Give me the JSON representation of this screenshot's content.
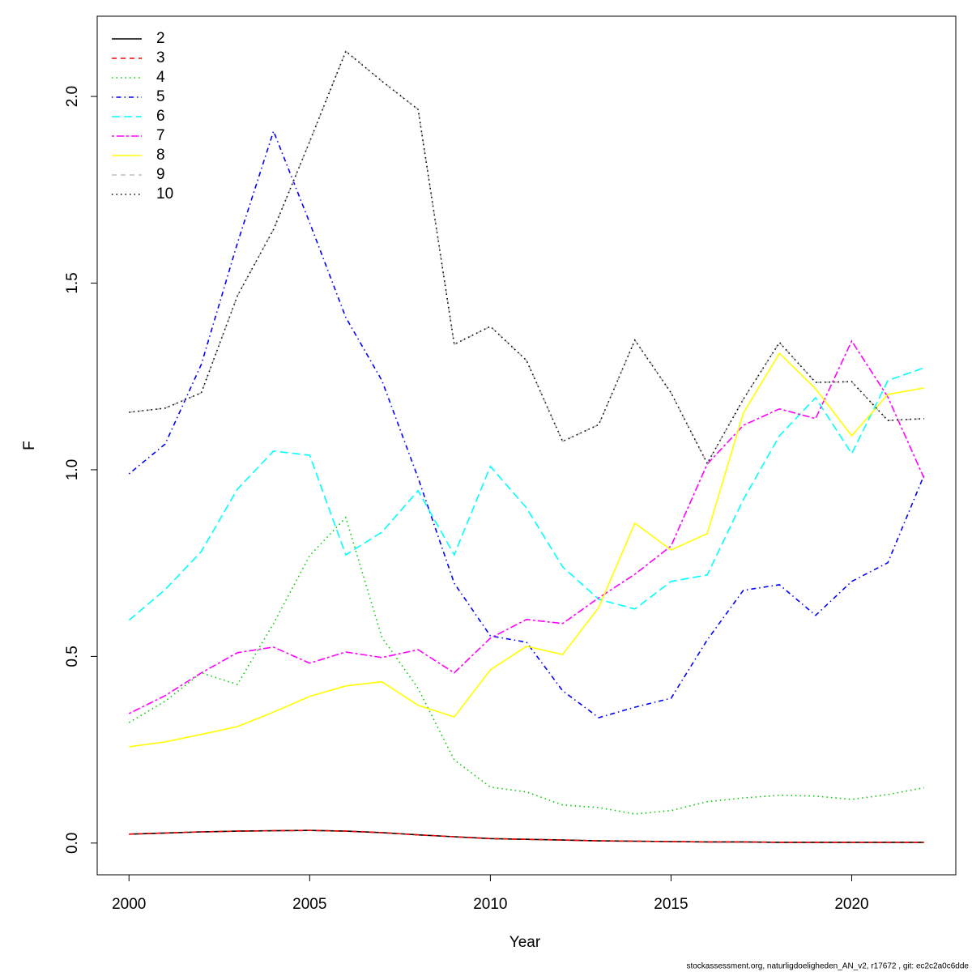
{
  "chart_data": {
    "type": "line",
    "xlabel": "Year",
    "ylabel": "F",
    "footer": "stockassessment.org, naturligdoeligheden_AN_v2, r17672 , git: ec2c2a0c6dde",
    "x": [
      2000,
      2001,
      2002,
      2003,
      2004,
      2005,
      2006,
      2007,
      2008,
      2009,
      2010,
      2011,
      2012,
      2013,
      2014,
      2015,
      2016,
      2017,
      2018,
      2019,
      2020,
      2021,
      2022
    ],
    "xlim": [
      1999.12,
      2022.88
    ],
    "xticks": [
      2000,
      2005,
      2010,
      2015,
      2020
    ],
    "ylim": [
      -0.085,
      2.215
    ],
    "yticks": [
      {
        "value": 0,
        "label": "0.0"
      },
      0.5,
      {
        "value": 1,
        "label": "1.0"
      },
      1.5,
      {
        "value": 2,
        "label": "2.0"
      }
    ],
    "legend": "top-left",
    "series": [
      {
        "name": "2",
        "color": "#000000",
        "dash": "none",
        "values": [
          0.024,
          0.027,
          0.03,
          0.032,
          0.033,
          0.034,
          0.032,
          0.028,
          0.022,
          0.017,
          0.012,
          0.01,
          0.008,
          0.006,
          0.005,
          0.004,
          0.003,
          0.003,
          0.002,
          0.002,
          0.002,
          0.002,
          0.002
        ]
      },
      {
        "name": "3",
        "color": "#ff0000",
        "dash": "6 5",
        "values": [
          0.024,
          0.027,
          0.03,
          0.032,
          0.033,
          0.034,
          0.032,
          0.028,
          0.022,
          0.017,
          0.012,
          0.01,
          0.008,
          0.006,
          0.005,
          0.004,
          0.003,
          0.003,
          0.002,
          0.002,
          0.002,
          0.002,
          0.002
        ]
      },
      {
        "name": "4",
        "color": "#00cd00",
        "dash": "1.5 4",
        "values": [
          0.323,
          0.38,
          0.456,
          0.425,
          0.588,
          0.77,
          0.872,
          0.551,
          0.414,
          0.223,
          0.15,
          0.137,
          0.102,
          0.095,
          0.078,
          0.087,
          0.111,
          0.121,
          0.128,
          0.126,
          0.117,
          0.13,
          0.148
        ]
      },
      {
        "name": "5",
        "color": "#0000ff",
        "dash": "1.5 4 6 4",
        "values": [
          0.989,
          1.069,
          1.282,
          1.607,
          1.907,
          1.662,
          1.408,
          1.239,
          0.978,
          0.696,
          0.555,
          0.538,
          0.408,
          0.336,
          0.364,
          0.388,
          0.544,
          0.677,
          0.692,
          0.61,
          0.701,
          0.751,
          0.985
        ]
      },
      {
        "name": "6",
        "color": "#00ffff",
        "dash": "10 5",
        "values": [
          0.597,
          0.679,
          0.781,
          0.948,
          1.05,
          1.039,
          0.772,
          0.833,
          0.944,
          0.772,
          1.009,
          0.898,
          0.74,
          0.653,
          0.627,
          0.701,
          0.718,
          0.92,
          1.091,
          1.193,
          1.043,
          1.239,
          1.273
        ]
      },
      {
        "name": "7",
        "color": "#ff00ff",
        "dash": "3 3 9 3",
        "values": [
          0.347,
          0.395,
          0.456,
          0.51,
          0.525,
          0.482,
          0.512,
          0.497,
          0.518,
          0.456,
          0.549,
          0.599,
          0.588,
          0.657,
          0.72,
          0.796,
          1.015,
          1.119,
          1.163,
          1.137,
          1.345,
          1.195,
          0.978
        ]
      },
      {
        "name": "8",
        "color": "#ffff00",
        "dash": "none",
        "values": [
          0.258,
          0.271,
          0.291,
          0.312,
          0.351,
          0.393,
          0.421,
          0.432,
          0.369,
          0.338,
          0.464,
          0.527,
          0.505,
          0.631,
          0.857,
          0.785,
          0.829,
          1.152,
          1.312,
          1.217,
          1.091,
          1.202,
          1.219
        ]
      },
      {
        "name": "9",
        "color": "#bebebe",
        "dash": "6 5",
        "values": [
          1.154,
          1.165,
          1.206,
          1.466,
          1.644,
          1.879,
          2.121,
          2.041,
          1.965,
          1.336,
          1.384,
          1.293,
          1.076,
          1.121,
          1.347,
          1.206,
          1.017,
          1.189,
          1.341,
          1.234,
          1.236,
          1.132,
          1.137
        ]
      },
      {
        "name": "10",
        "color": "#000000",
        "dash": "1.5 4",
        "values": [
          1.154,
          1.165,
          1.206,
          1.466,
          1.644,
          1.879,
          2.121,
          2.041,
          1.965,
          1.336,
          1.384,
          1.293,
          1.076,
          1.121,
          1.347,
          1.206,
          1.017,
          1.189,
          1.341,
          1.234,
          1.236,
          1.132,
          1.137
        ]
      }
    ]
  }
}
